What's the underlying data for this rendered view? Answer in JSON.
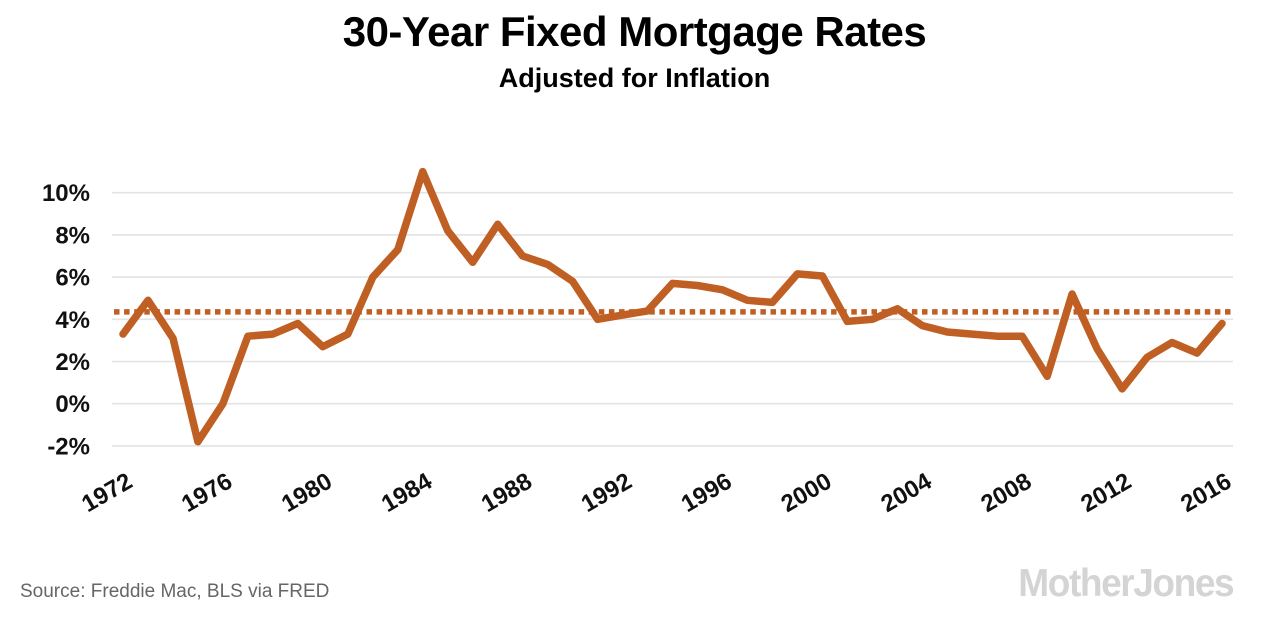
{
  "header": {
    "title": "30-Year Fixed Mortgage Rates",
    "subtitle": "Adjusted for Inflation"
  },
  "footer": {
    "source": "Source: Freddie Mac, BLS via FRED",
    "logo": "MotherJones"
  },
  "colors": {
    "line": "#C05F23",
    "reference_line": "#C05F23",
    "grid": "#E3E3E3",
    "tick_text": "#111111",
    "source_text": "#666666",
    "logo_text": "#D4D4D4",
    "background": "#FFFFFF"
  },
  "chart_data": {
    "type": "line",
    "title": "30-Year Fixed Mortgage Rates",
    "subtitle": "Adjusted for Inflation",
    "x": [
      1972,
      1973,
      1974,
      1975,
      1976,
      1977,
      1978,
      1979,
      1980,
      1981,
      1982,
      1983,
      1984,
      1985,
      1986,
      1987,
      1988,
      1989,
      1990,
      1991,
      1992,
      1993,
      1994,
      1995,
      1996,
      1997,
      1998,
      1999,
      2000,
      2001,
      2002,
      2003,
      2004,
      2005,
      2006,
      2007,
      2008,
      2009,
      2010,
      2011,
      2012,
      2013,
      2014,
      2015,
      2016
    ],
    "values": [
      3.3,
      4.9,
      3.1,
      -1.8,
      0.0,
      3.2,
      3.3,
      3.8,
      2.7,
      3.3,
      6.0,
      7.3,
      11.0,
      8.2,
      6.7,
      8.5,
      7.0,
      6.6,
      5.8,
      4.0,
      4.2,
      4.4,
      5.7,
      5.6,
      5.4,
      4.9,
      4.8,
      6.15,
      6.05,
      3.9,
      4.0,
      4.5,
      3.7,
      3.4,
      3.3,
      3.2,
      3.2,
      1.3,
      5.2,
      2.6,
      0.7,
      2.2,
      2.9,
      2.4,
      3.8
    ],
    "reference_line_value": 4.35,
    "x_tick_labels": [
      "1972",
      "1976",
      "1980",
      "1984",
      "1988",
      "1992",
      "1996",
      "2000",
      "2004",
      "2008",
      "2012",
      "2016"
    ],
    "x_tick_values": [
      1972,
      1976,
      1980,
      1984,
      1988,
      1992,
      1996,
      2000,
      2004,
      2008,
      2012,
      2016
    ],
    "y_tick_labels": [
      "10%",
      "8%",
      "6%",
      "4%",
      "2%",
      "0%",
      "-2%"
    ],
    "y_tick_values": [
      10,
      8,
      6,
      4,
      2,
      0,
      -2
    ],
    "ylim": [
      -2.6,
      11.5
    ],
    "xlabel": "",
    "ylabel": "",
    "grid": true,
    "legend_position": "none"
  }
}
